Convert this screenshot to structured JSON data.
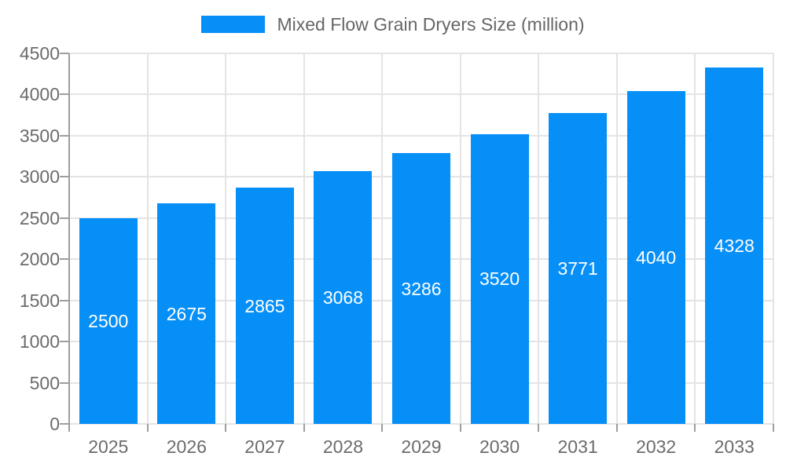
{
  "legend": {
    "label": "Mixed Flow Grain Dryers Size (million)"
  },
  "colors": {
    "bar": "#078FF8",
    "grid": "#E4E4E4",
    "axis": "#9E9E9E",
    "tick_label": "#6B6B6B",
    "legend_text": "#666666",
    "value_label": "#FFFFFF",
    "background": "#FFFFFF"
  },
  "chart_data": {
    "type": "bar",
    "title": "Mixed Flow Grain Dryers Size (million)",
    "categories": [
      "2025",
      "2026",
      "2027",
      "2028",
      "2029",
      "2030",
      "2031",
      "2032",
      "2033"
    ],
    "values": [
      2500,
      2675,
      2865,
      3068,
      3286,
      3520,
      3771,
      4040,
      4328
    ],
    "xlabel": "",
    "ylabel": "",
    "ylim": [
      0,
      4500
    ],
    "ytick_step": 500,
    "yticks": [
      0,
      500,
      1000,
      1500,
      2000,
      2500,
      3000,
      3500,
      4000,
      4500
    ],
    "grid": true,
    "legend_position": "top",
    "value_label_position": "inside-center",
    "bar_color": "#078FF8"
  }
}
